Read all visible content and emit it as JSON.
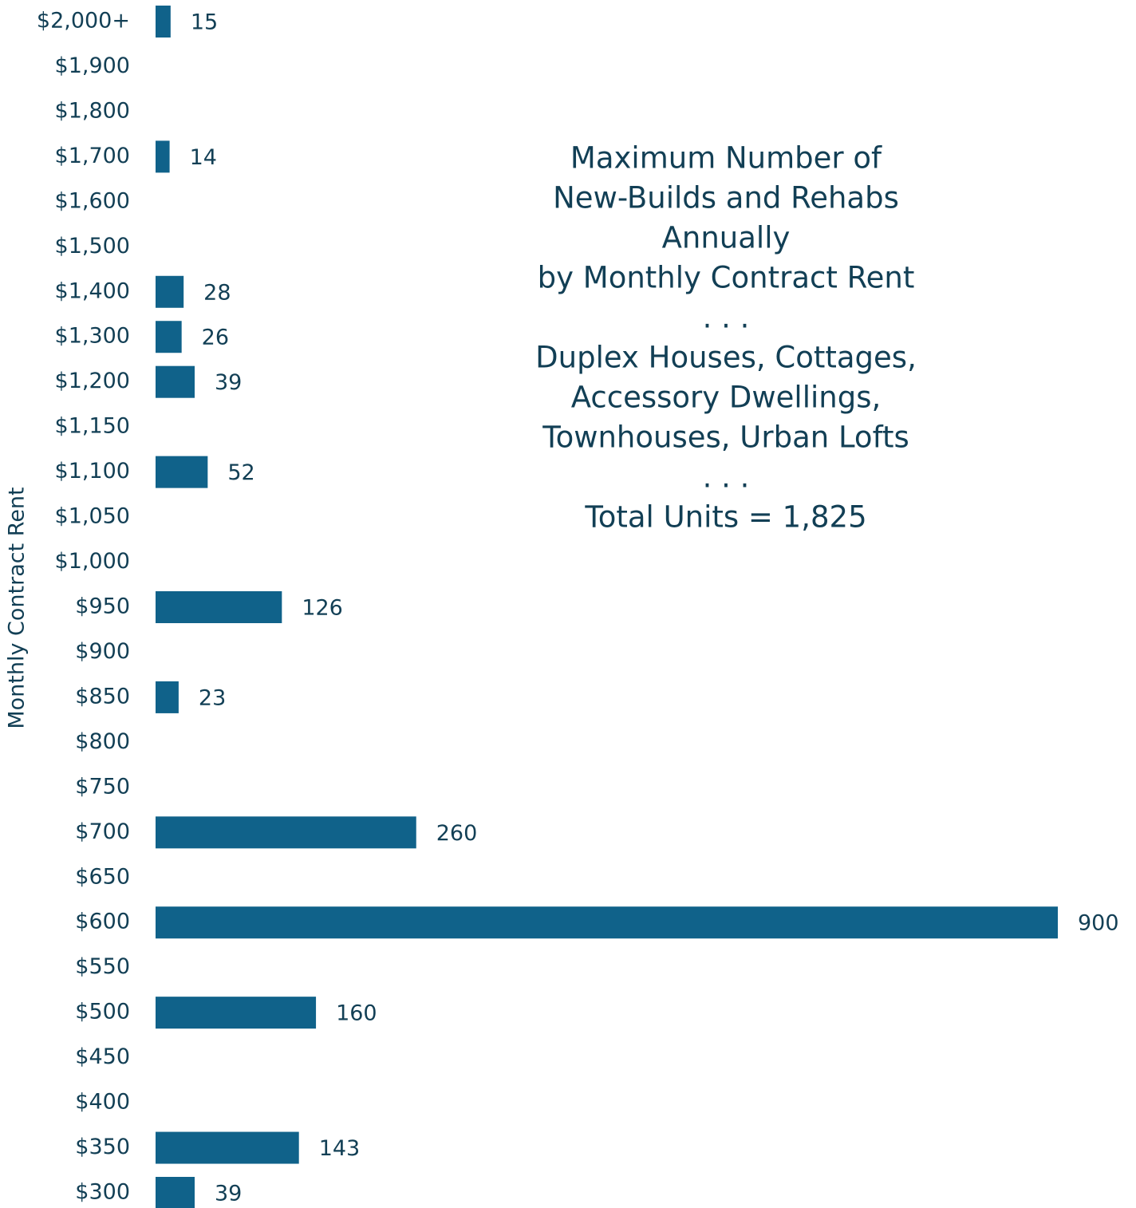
{
  "chart_data": {
    "type": "bar",
    "orientation": "horizontal",
    "title_lines": [
      "Maximum Number of",
      "New-Builds and Rehabs",
      "Annually",
      "by Monthly Contract Rent",
      ". . .",
      "Duplex Houses, Cottages,",
      "Accessory Dwellings,",
      "Townhouses, Urban Lofts",
      ". . .",
      "Total Units = 1,825"
    ],
    "y_label": "Monthly Contract Rent",
    "categories": [
      "$2,000+",
      "$1,900",
      "$1,800",
      "$1,700",
      "$1,600",
      "$1,500",
      "$1,400",
      "$1,300",
      "$1,200",
      "$1,150",
      "$1,100",
      "$1,050",
      "$1,000",
      "$950",
      "$900",
      "$850",
      "$800",
      "$750",
      "$700",
      "$650",
      "$600",
      "$550",
      "$500",
      "$450",
      "$400",
      "$350",
      "$300"
    ],
    "values": [
      15,
      null,
      null,
      14,
      null,
      null,
      28,
      26,
      39,
      null,
      52,
      null,
      null,
      126,
      null,
      23,
      null,
      null,
      260,
      null,
      900,
      null,
      160,
      null,
      null,
      143,
      39
    ],
    "color": "#10628a",
    "xlim": [
      0,
      900
    ]
  }
}
